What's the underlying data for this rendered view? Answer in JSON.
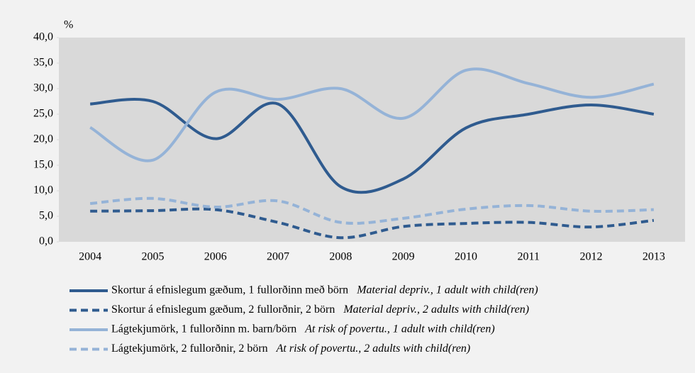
{
  "chart_data": {
    "type": "line",
    "y_unit_label": "%",
    "categories": [
      "2004",
      "2005",
      "2006",
      "2007",
      "2008",
      "2009",
      "2010",
      "2011",
      "2012",
      "2013"
    ],
    "series": [
      {
        "name": "Skortur á efnislegum gæðum, 1 fullorðinn með börn",
        "name_en": "Material depriv., 1 adult with child(ren)",
        "color": "#2f5b8f",
        "dashed": false,
        "values": [
          27.0,
          27.5,
          20.2,
          27.0,
          10.8,
          12.3,
          22.3,
          25.0,
          26.8,
          25.0
        ]
      },
      {
        "name": "Skortur á efnislegum gæðum, 2 fullorðnir, 2 börn",
        "name_en": "Material depriv., 2 adults with child(ren)",
        "color": "#2f5b8f",
        "dashed": true,
        "values": [
          6.0,
          6.1,
          6.3,
          3.8,
          0.8,
          3.0,
          3.6,
          3.8,
          2.9,
          4.2
        ]
      },
      {
        "name": "Lágtekjumörk, 1 fullorðinn m. barn/börn",
        "name_en": "At risk of povertu., 1 adult with child(ren)",
        "color": "#95b3d7",
        "dashed": false,
        "values": [
          22.4,
          16.0,
          29.3,
          27.9,
          30.0,
          24.2,
          33.6,
          31.0,
          28.3,
          30.9
        ]
      },
      {
        "name": "Lágtekjumörk, 2 fullorðnir, 2 börn",
        "name_en": "At risk of povertu., 2 adults with child(ren)",
        "color": "#95b3d7",
        "dashed": true,
        "values": [
          7.5,
          8.5,
          6.8,
          8.0,
          3.8,
          4.6,
          6.4,
          7.1,
          6.0,
          6.3
        ]
      }
    ],
    "ylim": [
      0,
      40
    ],
    "yticks": [
      {
        "value": 0,
        "label": "0,0"
      },
      {
        "value": 5,
        "label": "5,0"
      },
      {
        "value": 10,
        "label": "10,0"
      },
      {
        "value": 15,
        "label": "15,0"
      },
      {
        "value": 20,
        "label": "20,0"
      },
      {
        "value": 25,
        "label": "25,0"
      },
      {
        "value": 30,
        "label": "30,0"
      },
      {
        "value": 35,
        "label": "35,0"
      },
      {
        "value": 40,
        "label": "40,0"
      }
    ],
    "grid": false
  }
}
